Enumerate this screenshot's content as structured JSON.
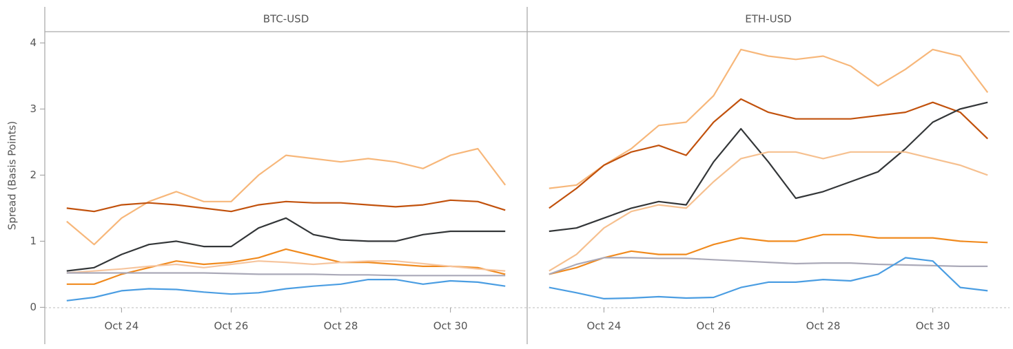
{
  "chart_data": [
    {
      "type": "line",
      "title": "BTC-USD",
      "ylabel": "Spread (Basis Points)",
      "x": [
        23,
        23.5,
        24,
        24.5,
        25,
        25.5,
        26,
        26.5,
        27,
        27.5,
        28,
        28.5,
        29,
        29.5,
        30,
        30.5,
        31
      ],
      "xlim": [
        22.6,
        31.4
      ],
      "ylim": [
        -0.1,
        4.17
      ],
      "xticks": [
        {
          "value": 24,
          "label": "Oct 24"
        },
        {
          "value": 26,
          "label": "Oct 26"
        },
        {
          "value": 28,
          "label": "Oct 28"
        },
        {
          "value": 30,
          "label": "Oct 30"
        }
      ],
      "yticks": [
        0,
        1,
        2,
        3,
        4
      ],
      "series": [
        {
          "color": "#f7b77a",
          "values": [
            1.3,
            0.95,
            1.35,
            1.6,
            1.75,
            1.6,
            1.6,
            2.0,
            2.3,
            2.25,
            2.2,
            2.25,
            2.2,
            2.1,
            2.3,
            2.4,
            1.85
          ]
        },
        {
          "color": "#c1510c",
          "values": [
            1.5,
            1.45,
            1.55,
            1.58,
            1.55,
            1.5,
            1.45,
            1.55,
            1.6,
            1.58,
            1.58,
            1.55,
            1.52,
            1.55,
            1.62,
            1.6,
            1.47
          ]
        },
        {
          "color": "#333638",
          "values": [
            0.55,
            0.6,
            0.8,
            0.95,
            1.0,
            0.92,
            0.92,
            1.2,
            1.35,
            1.1,
            1.02,
            1.0,
            1.0,
            1.1,
            1.15,
            1.15,
            1.15
          ]
        },
        {
          "color": "#f08a1e",
          "values": [
            0.35,
            0.35,
            0.5,
            0.6,
            0.7,
            0.65,
            0.68,
            0.75,
            0.88,
            0.78,
            0.68,
            0.68,
            0.65,
            0.62,
            0.62,
            0.6,
            0.5
          ]
        },
        {
          "color": "#f6c59e",
          "values": [
            0.52,
            0.55,
            0.58,
            0.62,
            0.65,
            0.6,
            0.65,
            0.7,
            0.68,
            0.65,
            0.68,
            0.7,
            0.7,
            0.66,
            0.62,
            0.58,
            0.55
          ]
        },
        {
          "color": "#aaa9b8",
          "values": [
            0.52,
            0.52,
            0.52,
            0.52,
            0.52,
            0.52,
            0.51,
            0.5,
            0.5,
            0.5,
            0.49,
            0.49,
            0.48,
            0.48,
            0.48,
            0.48,
            0.48
          ]
        },
        {
          "color": "#4a9de2",
          "values": [
            0.1,
            0.15,
            0.25,
            0.28,
            0.27,
            0.23,
            0.2,
            0.22,
            0.28,
            0.32,
            0.35,
            0.42,
            0.42,
            0.35,
            0.4,
            0.38,
            0.32
          ]
        }
      ]
    },
    {
      "type": "line",
      "title": "ETH-USD",
      "x": [
        23,
        23.5,
        24,
        24.5,
        25,
        25.5,
        26,
        26.5,
        27,
        27.5,
        28,
        28.5,
        29,
        29.5,
        30,
        30.5,
        31
      ],
      "xlim": [
        22.6,
        31.4
      ],
      "ylim": [
        -0.1,
        4.17
      ],
      "xticks": [
        {
          "value": 24,
          "label": "Oct 24"
        },
        {
          "value": 26,
          "label": "Oct 26"
        },
        {
          "value": 28,
          "label": "Oct 28"
        },
        {
          "value": 30,
          "label": "Oct 30"
        }
      ],
      "series": [
        {
          "color": "#f7b77a",
          "values": [
            1.8,
            1.85,
            2.15,
            2.4,
            2.75,
            2.8,
            3.2,
            3.9,
            3.8,
            3.75,
            3.8,
            3.65,
            3.35,
            3.6,
            3.9,
            3.8,
            3.25
          ]
        },
        {
          "color": "#c1510c",
          "values": [
            1.5,
            1.8,
            2.15,
            2.35,
            2.45,
            2.3,
            2.8,
            3.15,
            2.95,
            2.85,
            2.85,
            2.85,
            2.9,
            2.95,
            3.1,
            2.95,
            2.55
          ]
        },
        {
          "color": "#333638",
          "values": [
            1.15,
            1.2,
            1.35,
            1.5,
            1.6,
            1.55,
            2.2,
            2.7,
            2.2,
            1.65,
            1.75,
            1.9,
            2.05,
            2.4,
            2.8,
            3.0,
            3.1
          ]
        },
        {
          "color": "#f6c08f",
          "values": [
            0.55,
            0.8,
            1.2,
            1.45,
            1.55,
            1.5,
            1.9,
            2.25,
            2.35,
            2.35,
            2.25,
            2.35,
            2.35,
            2.35,
            2.25,
            2.15,
            2.0
          ]
        },
        {
          "color": "#f08a1e",
          "values": [
            0.5,
            0.6,
            0.75,
            0.85,
            0.8,
            0.8,
            0.95,
            1.05,
            1.0,
            1.0,
            1.1,
            1.1,
            1.05,
            1.05,
            1.05,
            1.0,
            0.98
          ]
        },
        {
          "color": "#aaa9b8",
          "values": [
            0.5,
            0.65,
            0.75,
            0.75,
            0.74,
            0.74,
            0.72,
            0.7,
            0.68,
            0.66,
            0.67,
            0.67,
            0.65,
            0.64,
            0.63,
            0.62,
            0.62
          ]
        },
        {
          "color": "#4a9de2",
          "values": [
            0.3,
            0.22,
            0.13,
            0.14,
            0.16,
            0.14,
            0.15,
            0.3,
            0.38,
            0.38,
            0.42,
            0.4,
            0.5,
            0.75,
            0.7,
            0.3,
            0.25
          ]
        }
      ]
    }
  ]
}
